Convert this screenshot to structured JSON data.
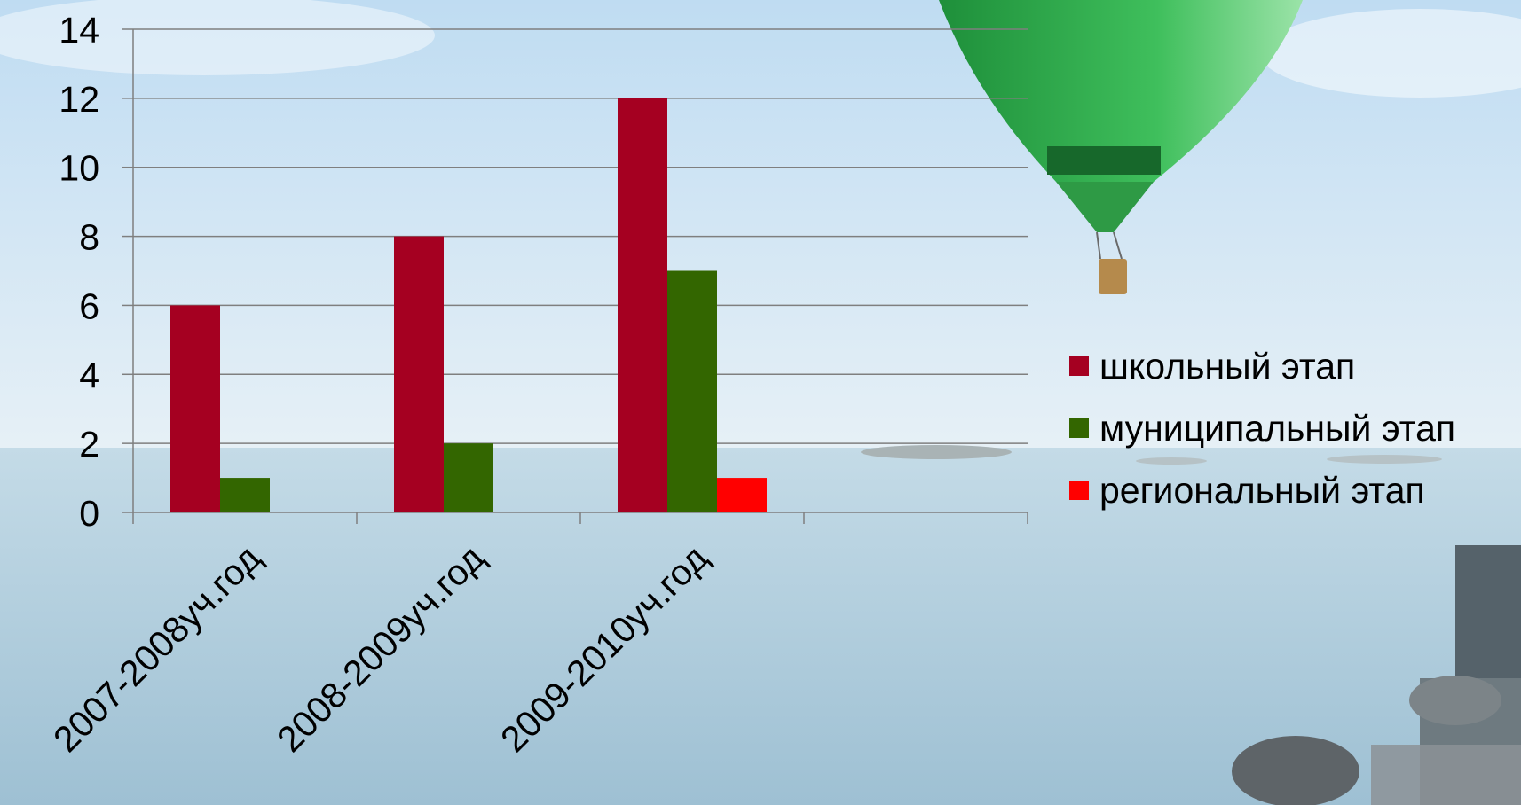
{
  "chart_data": {
    "type": "bar",
    "categories": [
      "2007-2008уч.год",
      "2008-2009уч.год",
      "2009-2010уч.год",
      ""
    ],
    "series": [
      {
        "name": "школьный этап",
        "color": "#A50021",
        "values": [
          6,
          8,
          12,
          null
        ]
      },
      {
        "name": "муниципальный этап",
        "color": "#336600",
        "values": [
          1,
          2,
          7,
          null
        ]
      },
      {
        "name": "региональный этап",
        "color": "#FF0000",
        "values": [
          null,
          null,
          1,
          null
        ]
      }
    ],
    "yticks": [
      "0",
      "2",
      "4",
      "6",
      "8",
      "10",
      "12",
      "14"
    ],
    "ylim": [
      0,
      14
    ],
    "grid": true,
    "legend_position": "right",
    "title": "",
    "xlabel": "",
    "ylabel": ""
  },
  "background": {
    "sky_color": "#CFE3F2",
    "sea_color": "#A9C9DB",
    "balloon_color": "#2EA84A"
  }
}
